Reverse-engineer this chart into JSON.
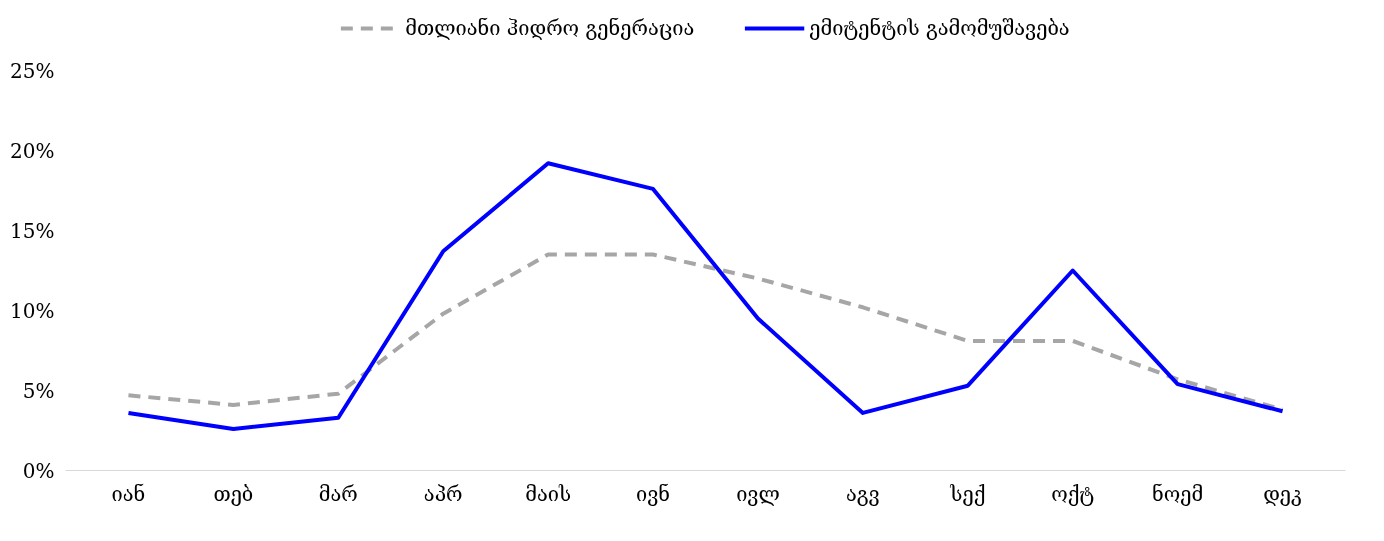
{
  "chart_data": {
    "type": "line",
    "categories": [
      "იან",
      "თებ",
      "მარ",
      "აპრ",
      "მაის",
      "ივნ",
      "ივლ",
      "აგვ",
      "სექ",
      "ოქტ",
      "ნოემ",
      "დეკ"
    ],
    "series": [
      {
        "name": "მთლიანი ჰიდრო გენერაცია",
        "color": "#a6a6a6",
        "line_style": "dashed",
        "values": [
          4.7,
          4.1,
          4.8,
          9.8,
          13.5,
          13.5,
          12.0,
          10.2,
          8.1,
          8.1,
          5.7,
          3.8
        ]
      },
      {
        "name": "ემიტენტის გამომუშავება",
        "color": "#0000ff",
        "line_style": "solid",
        "values": [
          3.6,
          2.6,
          3.3,
          13.7,
          19.2,
          17.6,
          9.5,
          3.6,
          5.3,
          12.5,
          5.4,
          3.7
        ]
      }
    ],
    "ylim": [
      0,
      25
    ],
    "yticks": [
      {
        "value": 0,
        "label": "0%"
      },
      {
        "value": 5,
        "label": "5%"
      },
      {
        "value": 10,
        "label": "10%"
      },
      {
        "value": 15,
        "label": "15%"
      },
      {
        "value": 20,
        "label": "20%"
      },
      {
        "value": 25,
        "label": "25%"
      }
    ],
    "grid": false,
    "legend": "top",
    "marker": "none"
  }
}
